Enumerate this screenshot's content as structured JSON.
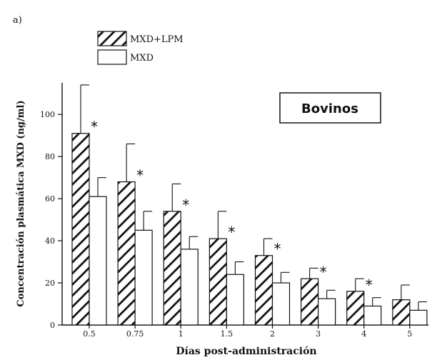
{
  "panel_label": "a)",
  "chart_data": {
    "type": "bar",
    "title": "",
    "annotation": "Bovinos",
    "xlabel": "Días post-administración",
    "ylabel": "Concentración plasmática MXD (ng/ml)",
    "categories": [
      "0.5",
      "0.75",
      "1",
      "1.5",
      "2",
      "3",
      "4",
      "5"
    ],
    "ylim": [
      0,
      115
    ],
    "yticks": [
      0,
      20,
      40,
      60,
      80,
      100
    ],
    "grid": false,
    "legend_position": "top-left",
    "series": [
      {
        "name": "MXD+LPM",
        "pattern": "diagonal-hatch",
        "values": [
          91,
          68,
          54,
          41,
          33,
          22,
          16,
          12
        ],
        "error": [
          23,
          18,
          13,
          13,
          8,
          5,
          6,
          7
        ],
        "significance": [
          "*",
          "*",
          "*",
          "*",
          "*",
          "*",
          "*",
          ""
        ]
      },
      {
        "name": "MXD",
        "pattern": "none",
        "values": [
          61,
          45,
          36,
          24,
          20,
          12.5,
          9,
          7
        ],
        "error": [
          9,
          9,
          6,
          6,
          5,
          4,
          4,
          4
        ]
      }
    ],
    "colors": {
      "bar_outline": "#111111",
      "hatch": "#111111",
      "fill_plain": "#ffffff"
    }
  }
}
